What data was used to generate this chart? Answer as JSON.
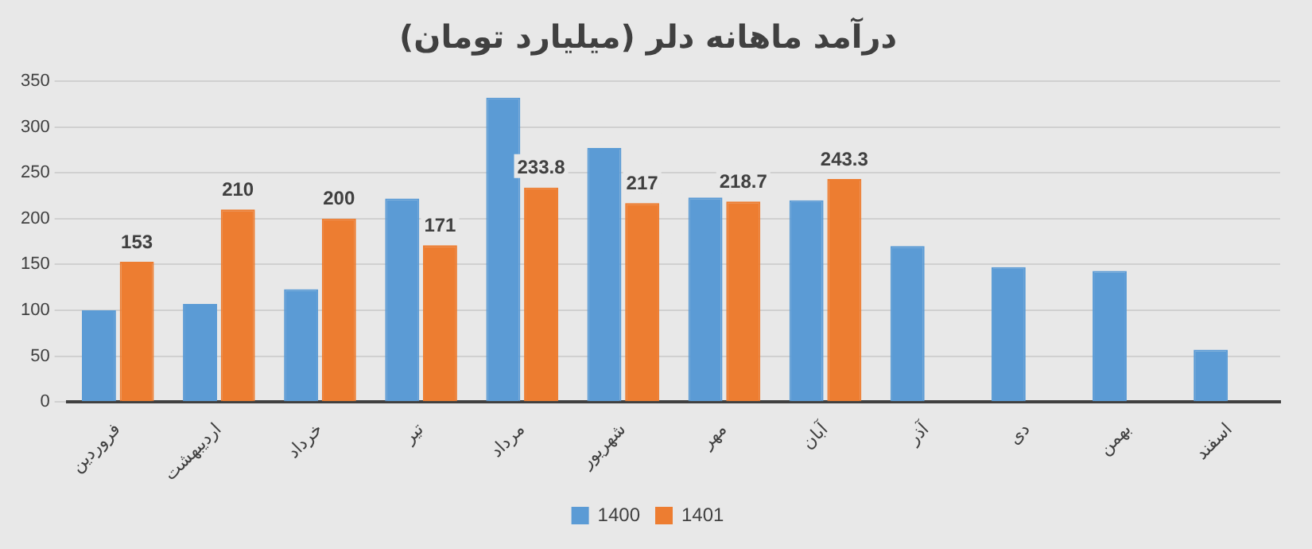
{
  "chart_data": {
    "type": "bar",
    "title": "درآمد ماهانه دلر (میلیارد تومان)",
    "categories": [
      "فروردین",
      "اردیبهشت",
      "خرداد",
      "تیر",
      "مرداد",
      "شهریور",
      "مهر",
      "آبان",
      "آذر",
      "دی",
      "بهمن",
      "اسفند"
    ],
    "series": [
      {
        "name": "1400",
        "color": "#5b9bd5",
        "values": [
          100,
          107,
          123,
          222,
          332,
          277,
          223,
          220,
          170,
          147,
          143,
          57
        ]
      },
      {
        "name": "1401",
        "color": "#ed7d31",
        "values": [
          153,
          210,
          200,
          171,
          233.8,
          217,
          218.7,
          243.3,
          null,
          null,
          null,
          null
        ],
        "value_labels": [
          "153",
          "210",
          "200",
          "171",
          "233.8",
          "217",
          "218.7",
          "243.3",
          null,
          null,
          null,
          null
        ]
      }
    ],
    "ylim": [
      0,
      350
    ],
    "yticks": [
      0,
      50,
      100,
      150,
      200,
      250,
      300,
      350
    ],
    "grid": "y",
    "legend": "bottom"
  }
}
